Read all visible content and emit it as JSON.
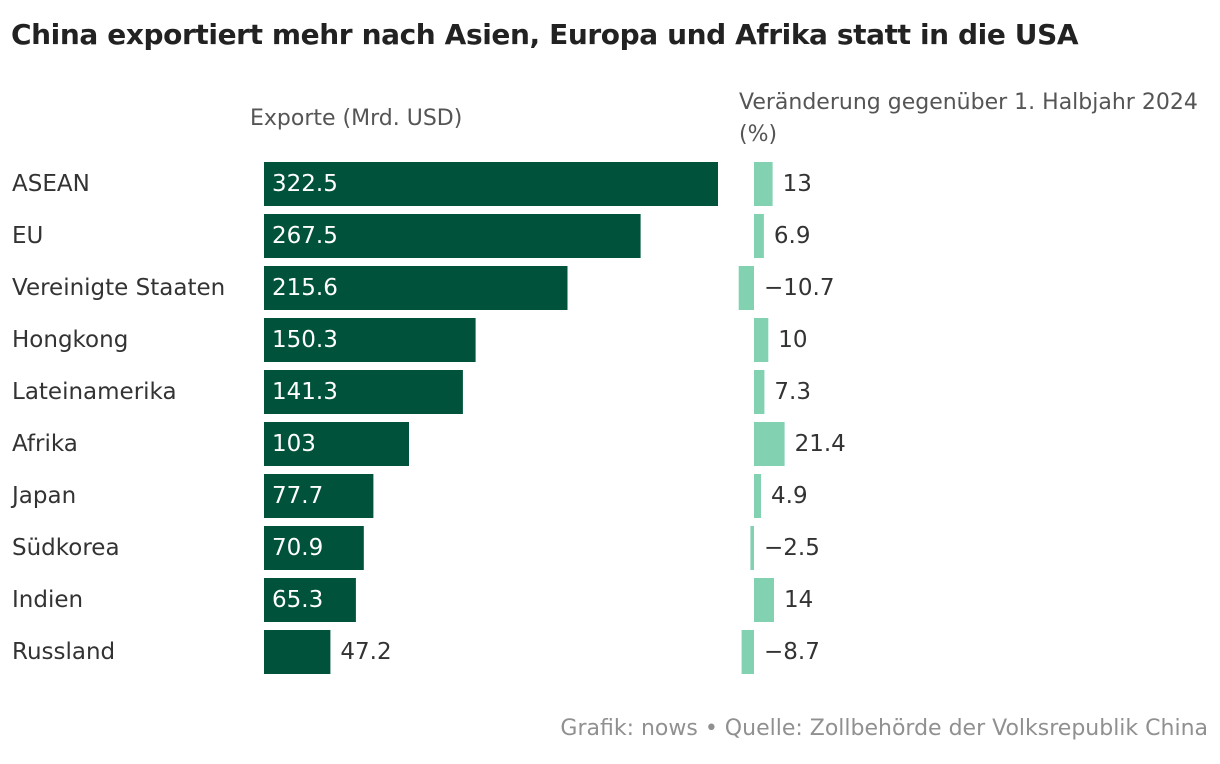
{
  "title": "China exportiert mehr nach Asien, Europa und Afrika statt in die USA",
  "headers": {
    "exports": "Exporte (Mrd. USD)",
    "change": "Veränderung gegenüber 1. Halbjahr 2024 (%)"
  },
  "footer": "Grafik: nows • Quelle: Zollbehörde der Volksrepublik China",
  "colors": {
    "export_bar": "#00533a",
    "change_bar": "#82d2b2",
    "label_text": "#333333",
    "inside_label": "#ffffff"
  },
  "chart_data": {
    "type": "bar",
    "orientation": "horizontal",
    "title": "China exportiert mehr nach Asien, Europa und Afrika statt in die USA",
    "categories": [
      "ASEAN",
      "EU",
      "Vereinigte Staaten",
      "Hongkong",
      "Lateinamerika",
      "Afrika",
      "Japan",
      "Südkorea",
      "Indien",
      "Russland"
    ],
    "series": [
      {
        "name": "Exporte (Mrd. USD)",
        "values": [
          322.5,
          267.5,
          215.6,
          150.3,
          141.3,
          103,
          77.7,
          70.9,
          65.3,
          47.2
        ],
        "labels": [
          "322.5",
          "267.5",
          "215.6",
          "150.3",
          "141.3",
          "103",
          "77.7",
          "70.9",
          "65.3",
          "47.2"
        ]
      },
      {
        "name": "Veränderung gegenüber 1. Halbjahr 2024 (%)",
        "values": [
          13,
          6.9,
          -10.7,
          10,
          7.3,
          21.4,
          4.9,
          -2.5,
          14,
          -8.7
        ],
        "labels": [
          "13",
          "6.9",
          "−10.7",
          "10",
          "7.3",
          "21.4",
          "4.9",
          "−2.5",
          "14",
          "−8.7"
        ]
      }
    ],
    "xlim_exports": [
      0,
      322.5
    ],
    "xlim_change": [
      -10.7,
      21.4
    ],
    "grid": false,
    "legend": "none"
  }
}
